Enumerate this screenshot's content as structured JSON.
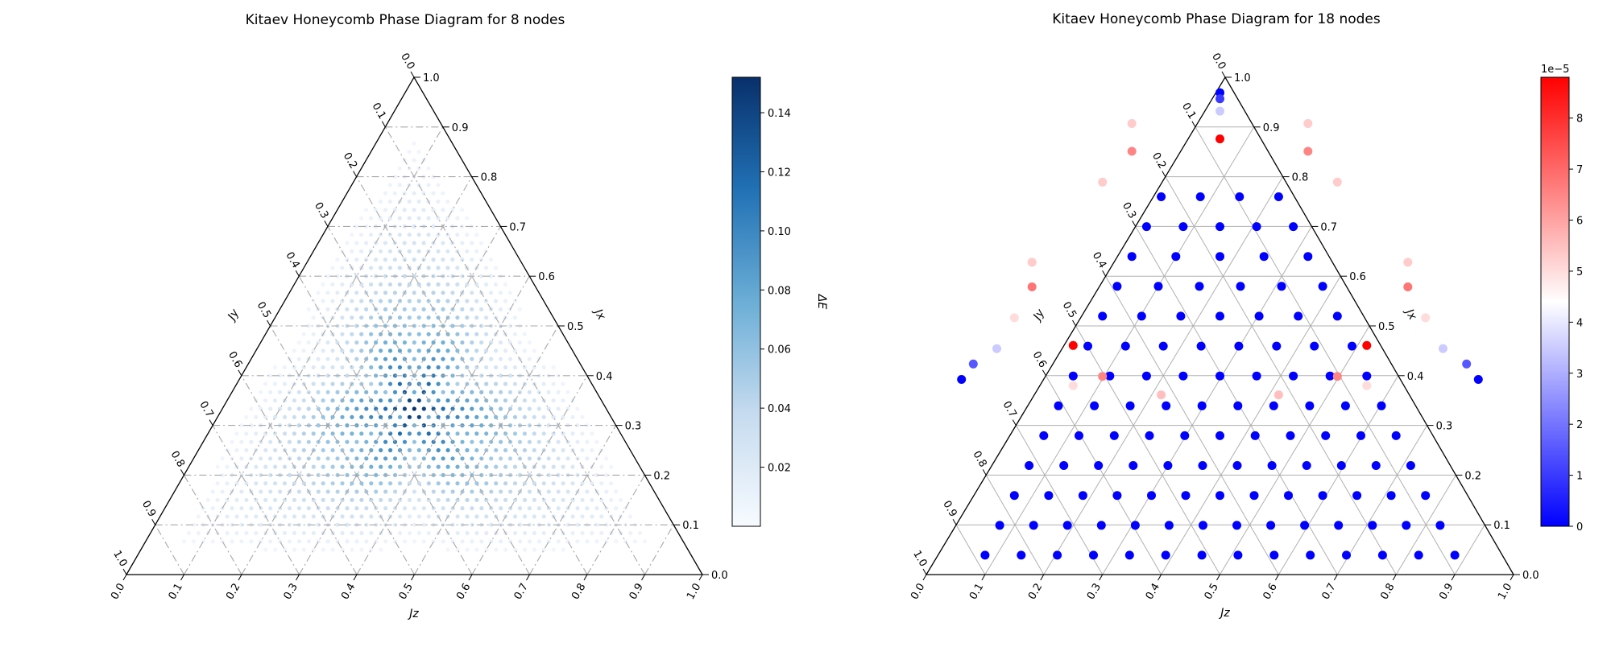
{
  "chart_data": [
    {
      "type": "ternary-scatter",
      "title": "Kitaev Honeycomb Phase Diagram for 8 nodes",
      "axes": {
        "bottom": "J_z",
        "left": "J_y",
        "right": "J_x"
      },
      "axis_label_display": {
        "bottom": "Jz",
        "left": "Jy",
        "right": "Jx"
      },
      "ticks": [
        "0.0",
        "0.1",
        "0.2",
        "0.3",
        "0.4",
        "0.5",
        "0.6",
        "0.7",
        "0.8",
        "0.9",
        "1.0"
      ],
      "grid": true,
      "grid_style": "dash-dot",
      "colormap": "Blues",
      "colors": [
        "#f7fbff",
        "#c6dbef",
        "#6baed6",
        "#2171b5",
        "#08306b"
      ],
      "colorbar": {
        "label": "ΔE",
        "range": [
          0.0,
          0.152
        ],
        "ticks": [
          0.02,
          0.04,
          0.06,
          0.08,
          0.1,
          0.12,
          0.14
        ],
        "tick_labels": [
          "0.02",
          "0.04",
          "0.06",
          "0.08",
          "0.10",
          "0.12",
          "0.14"
        ],
        "placement": "right"
      },
      "grid_resolution": 60,
      "gap_formula": "dense sampling; ΔE peaks (≈0.152) at the centre Jx=Jy=Jz=1/3 and falls to 0 at the edges, with star-shaped streak pattern"
    },
    {
      "type": "ternary-scatter",
      "title": "Kitaev Honeycomb Phase Diagram for 18 nodes",
      "axes": {
        "bottom": "J_z",
        "left": "J_y",
        "right": "J_x"
      },
      "axis_label_display": {
        "bottom": "Jz",
        "left": "Jy",
        "right": "Jx"
      },
      "ticks": [
        "0.0",
        "0.1",
        "0.2",
        "0.3",
        "0.4",
        "0.5",
        "0.6",
        "0.7",
        "0.8",
        "0.9",
        "1.0"
      ],
      "grid": true,
      "grid_style": "solid",
      "colormap": "bwr",
      "colors": [
        "#0000ff",
        "#ffffff",
        "#ff0000"
      ],
      "colorbar": {
        "label": "ΔE",
        "offset_text": "1e−5",
        "range": [
          0,
          8.8
        ],
        "ticks": [
          0,
          1,
          2,
          3,
          4,
          5,
          6,
          7,
          8
        ],
        "tick_labels": [
          "0",
          "1",
          "2",
          "3",
          "4",
          "5",
          "6",
          "7",
          "8"
        ],
        "placement": "right"
      },
      "points_note": "~130 points; values in units of 1e-5",
      "points": [
        {
          "jz": 0.5,
          "jy": 0.05,
          "v": 0
        },
        {
          "jz": 0.5,
          "jy": 0.07,
          "v": 1
        },
        {
          "jz": 0.5,
          "jy": 0.11,
          "v": 3.5
        },
        {
          "jz": 0.5,
          "jy": 0.2,
          "v": 8.8
        },
        {
          "jz": 0.35,
          "jy": 0.24,
          "v": 6.5
        },
        {
          "jz": 0.65,
          "jy": 0.24,
          "v": 6.5
        },
        {
          "jz": 0.35,
          "jy": 0.15,
          "v": 5.3
        },
        {
          "jz": 0.65,
          "jy": 0.15,
          "v": 5.3
        },
        {
          "jz": 0.3,
          "jy": 0.34,
          "v": 5.3
        },
        {
          "jz": 0.7,
          "jy": 0.34,
          "v": 5.3
        },
        {
          "jz": 0.18,
          "jy": 0.68,
          "v": 6.8
        },
        {
          "jz": 0.82,
          "jy": 0.68,
          "v": 6.8
        },
        {
          "jz": 0.18,
          "jy": 0.6,
          "v": 5.3
        },
        {
          "jz": 0.82,
          "jy": 0.6,
          "v": 5.3
        },
        {
          "jz": 0.15,
          "jy": 0.78,
          "v": 5.0
        },
        {
          "jz": 0.85,
          "jy": 0.78,
          "v": 5.0
        },
        {
          "jz": 0.25,
          "jy": 0.87,
          "v": 8.8
        },
        {
          "jz": 0.75,
          "jy": 0.87,
          "v": 8.8
        },
        {
          "jz": 0.3,
          "jy": 0.97,
          "v": 6.5
        },
        {
          "jz": 0.7,
          "jy": 0.97,
          "v": 6.5
        },
        {
          "jz": 0.4,
          "jy": 1.03,
          "v": 5.5
        },
        {
          "jz": 0.6,
          "jy": 1.03,
          "v": 5.5
        },
        {
          "jz": 0.25,
          "jy": 1.0,
          "v": 5.0
        },
        {
          "jz": 0.75,
          "jy": 1.0,
          "v": 5.0
        },
        {
          "jz": 0.06,
          "jy": 0.98,
          "v": 0
        },
        {
          "jz": 0.94,
          "jy": 0.98,
          "v": 0
        },
        {
          "jz": 0.08,
          "jy": 0.93,
          "v": 1.5
        },
        {
          "jz": 0.92,
          "jy": 0.93,
          "v": 1.5
        },
        {
          "jz": 0.12,
          "jy": 0.88,
          "v": 3.5
        },
        {
          "jz": 0.88,
          "jy": 0.88,
          "v": 3.5
        }
      ],
      "blue_grid_note": "remaining blue (v≈0) points are generated on a lattice inside the triangle"
    }
  ]
}
